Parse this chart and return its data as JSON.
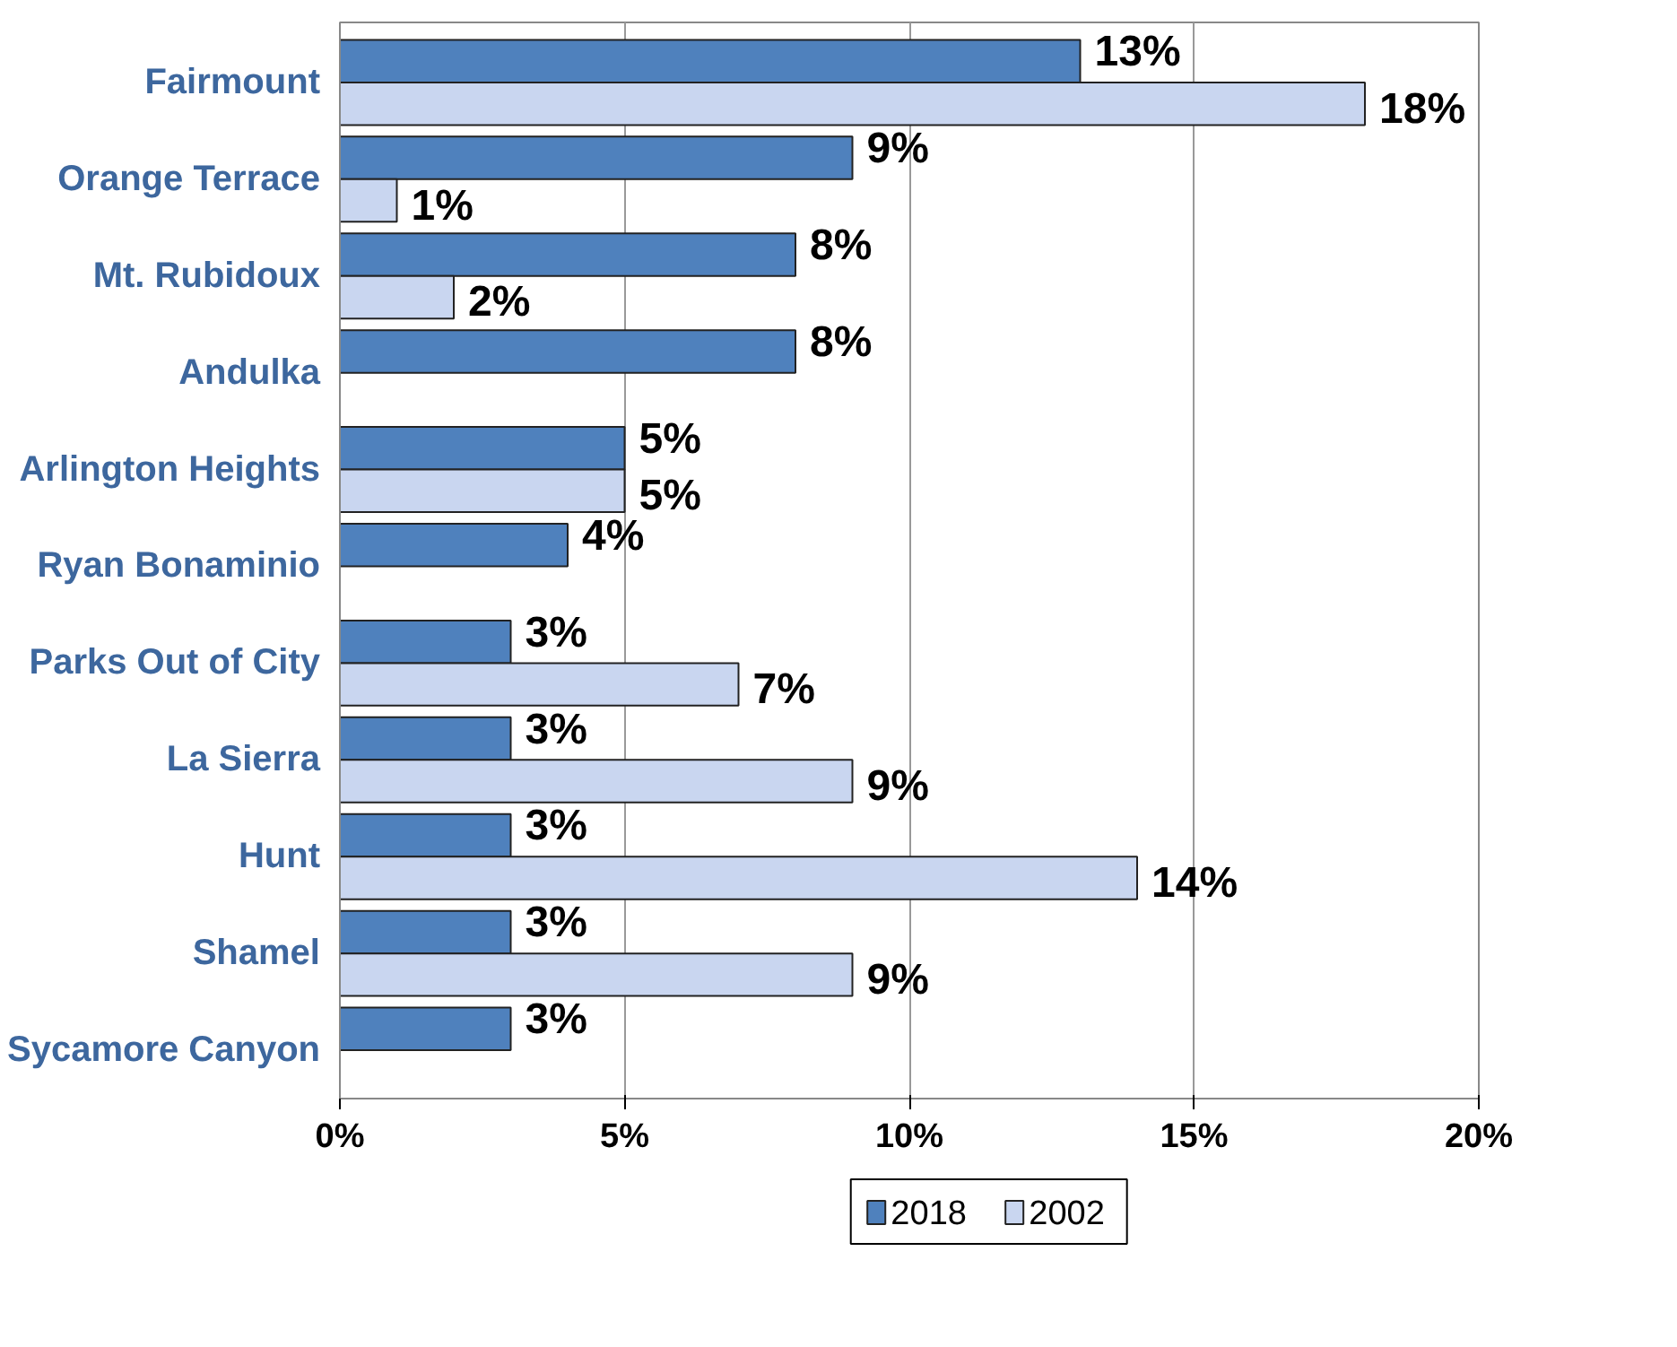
{
  "chart_data": {
    "type": "bar",
    "orientation": "horizontal",
    "categories": [
      "Fairmount",
      "Orange Terrace",
      "Mt. Rubidoux",
      "Andulka",
      "Arlington Heights",
      "Ryan Bonaminio",
      "Parks Out of City",
      "La Sierra",
      "Hunt",
      "Shamel",
      "Sycamore Canyon"
    ],
    "series": [
      {
        "name": "2018",
        "color": "#4f81bd",
        "values": [
          13,
          9,
          8,
          8,
          5,
          4,
          3,
          3,
          3,
          3,
          3
        ],
        "value_labels": [
          "13%",
          "9%",
          "8%",
          "8%",
          "5%",
          "4%",
          "3%",
          "3%",
          "3%",
          "3%",
          "3%"
        ]
      },
      {
        "name": "2002",
        "color": "#c9d6f0",
        "values": [
          18,
          1,
          2,
          null,
          5,
          null,
          7,
          9,
          14,
          9,
          null
        ],
        "value_labels": [
          "18%",
          "1%",
          "2%",
          null,
          "5%",
          null,
          "7%",
          "9%",
          "14%",
          "9%",
          null
        ]
      }
    ],
    "xlim": [
      0,
      20
    ],
    "xticks": [
      {
        "value": 0,
        "label": "0%"
      },
      {
        "value": 5,
        "label": "5%"
      },
      {
        "value": 10,
        "label": "10%"
      },
      {
        "value": 15,
        "label": "15%"
      },
      {
        "value": 20,
        "label": "20%"
      }
    ],
    "grid": "x",
    "legend": "bottom"
  }
}
